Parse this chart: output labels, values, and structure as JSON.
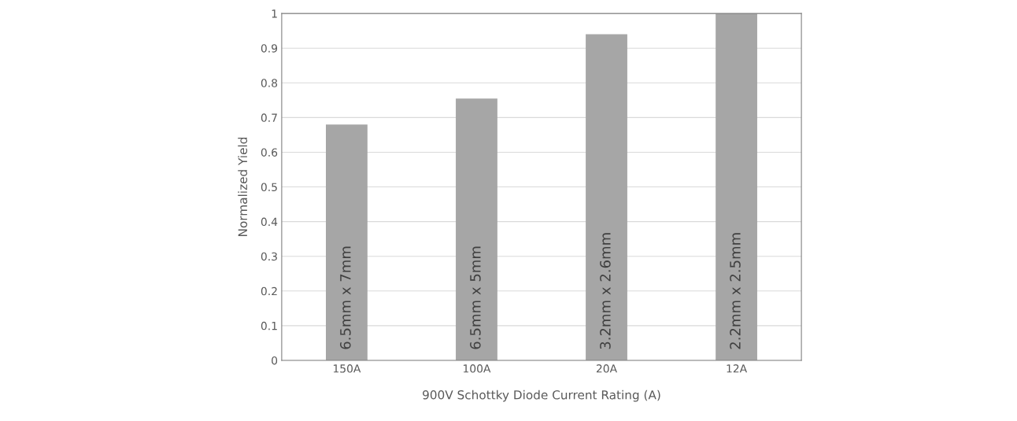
{
  "chart_data": {
    "type": "bar",
    "xlabel": "900V Schottky Diode Current Rating (A)",
    "ylabel": "Normalized Yield",
    "categories": [
      "150A",
      "100A",
      "20A",
      "12A"
    ],
    "values": [
      0.68,
      0.755,
      0.94,
      1.0
    ],
    "color": "#a6a6a6",
    "ylim": [
      0,
      1
    ],
    "yticks": [
      0,
      0.1,
      0.2,
      0.3,
      0.4,
      0.5,
      0.6,
      0.7,
      0.8,
      0.9,
      1
    ],
    "grid": "y",
    "annotations": [
      "6.5mm x 7mm",
      "6.5mm x 5mm",
      "3.2mm x 2.6mm",
      "2.2mm x 2.5mm"
    ]
  }
}
